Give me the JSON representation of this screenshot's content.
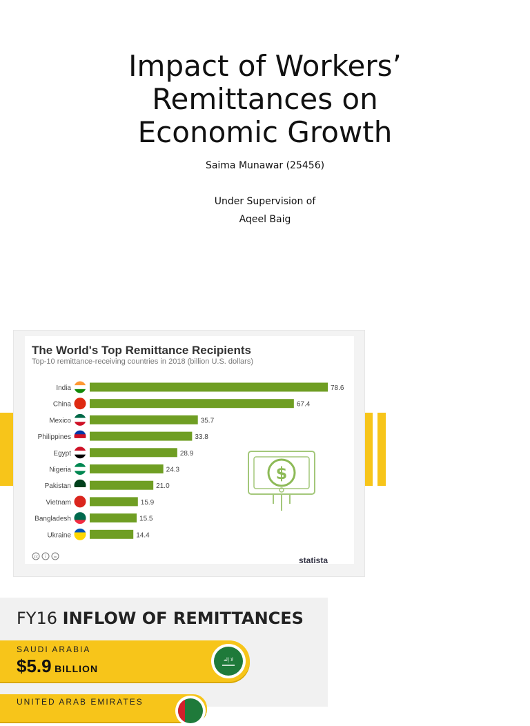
{
  "slide": {
    "title_lines": [
      "Impact of Workers’",
      "Remittances on",
      "Economic Growth"
    ],
    "author": "Saima Munawar (25456)",
    "supervision_label": "Under Supervision of",
    "supervisor": "Aqeel Baig"
  },
  "chart_data": {
    "type": "bar",
    "orientation": "horizontal",
    "title": "The World's Top Remittance Recipients",
    "subtitle": "Top-10 remittance-receiving countries in 2018 (billion U.S. dollars)",
    "categories": [
      "India",
      "China",
      "Mexico",
      "Philippines",
      "Egypt",
      "Nigeria",
      "Pakistan",
      "Vietnam",
      "Bangladesh",
      "Ukraine"
    ],
    "values": [
      78.6,
      67.4,
      35.7,
      33.8,
      28.9,
      24.3,
      21.0,
      15.9,
      15.5,
      14.4
    ],
    "value_labels": [
      "78.6",
      "67.4",
      "35.7",
      "33.8",
      "28.9",
      "24.3",
      "21.0",
      "15.9",
      "15.5",
      "14.4"
    ],
    "bar_color": "#6f9e23",
    "source": "statista",
    "grid": false
  },
  "remittances": {
    "title_light": "FY16 ",
    "title_bold": "INFLOW OF REMITTANCES",
    "items": [
      {
        "country": "SAUDI ARABIA",
        "amount": "$5.9",
        "unit": "BILLION"
      },
      {
        "country": "UNITED ARAB EMIRATES"
      }
    ]
  },
  "colors": {
    "accent_yellow": "#f7c51a",
    "bar_green": "#6f9e23"
  }
}
